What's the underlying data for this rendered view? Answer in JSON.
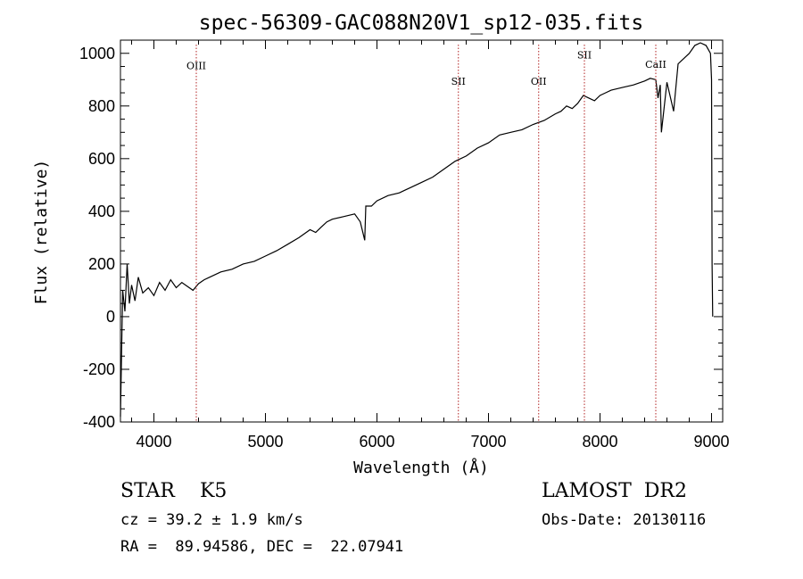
{
  "chart_data": {
    "type": "line",
    "title": "spec-56309-GAC088N20V1_sp12-035.fits",
    "xlabel": "Wavelength (Å)",
    "ylabel": "Flux (relative)",
    "xlim": [
      3700,
      9100
    ],
    "ylim": [
      -400,
      1050
    ],
    "xticks": [
      4000,
      5000,
      6000,
      7000,
      8000,
      9000
    ],
    "yticks": [
      -400,
      -200,
      0,
      200,
      400,
      600,
      800,
      1000
    ],
    "grid": false,
    "line_color": "#000000",
    "marker_color": "#b22222",
    "lines": [
      {
        "name": "OIII",
        "x": 4380,
        "label_flux": 940
      },
      {
        "name": "SII",
        "x": 6730,
        "label_flux": 880
      },
      {
        "name": "OII",
        "x": 7450,
        "label_flux": 880
      },
      {
        "name": "SII",
        "x": 7860,
        "label_flux": 980
      },
      {
        "name": "CaII",
        "x": 8500,
        "label_flux": 945
      }
    ],
    "series": [
      {
        "x": [
          3700,
          3720,
          3740,
          3760,
          3780,
          3800,
          3830,
          3860,
          3900,
          3950,
          4000,
          4050,
          4100,
          4150,
          4200,
          4250,
          4300,
          4350,
          4400,
          4450,
          4500,
          4600,
          4700,
          4800,
          4900,
          5000,
          5100,
          5200,
          5300,
          5400,
          5450,
          5500,
          5550,
          5600,
          5700,
          5800,
          5850,
          5890,
          5900,
          5950,
          6000,
          6100,
          6200,
          6250,
          6300,
          6400,
          6500,
          6600,
          6700,
          6800,
          6900,
          7000,
          7100,
          7200,
          7300,
          7400,
          7500,
          7600,
          7650,
          7700,
          7750,
          7800,
          7850,
          7900,
          7950,
          8000,
          8050,
          8100,
          8200,
          8300,
          8400,
          8450,
          8500,
          8520,
          8540,
          8550,
          8600,
          8660,
          8700,
          8750,
          8800,
          8850,
          8900,
          8950,
          8990,
          9000,
          9005,
          9010
        ],
        "y": [
          -380,
          100,
          20,
          200,
          50,
          120,
          60,
          150,
          90,
          110,
          80,
          130,
          100,
          140,
          110,
          130,
          115,
          100,
          125,
          140,
          150,
          170,
          180,
          200,
          210,
          230,
          250,
          275,
          300,
          330,
          320,
          340,
          360,
          370,
          380,
          390,
          360,
          290,
          420,
          420,
          440,
          460,
          470,
          480,
          490,
          510,
          530,
          560,
          590,
          610,
          640,
          660,
          690,
          700,
          710,
          730,
          745,
          770,
          780,
          800,
          790,
          810,
          840,
          830,
          820,
          840,
          850,
          860,
          870,
          880,
          895,
          905,
          900,
          830,
          880,
          700,
          890,
          780,
          960,
          980,
          1000,
          1030,
          1040,
          1030,
          1000,
          900,
          200,
          0
        ]
      }
    ]
  },
  "footer": {
    "object": "STAR    K5",
    "velocity": "cz = 39.2 ± 1.9 km/s",
    "coords": "RA =  89.94586, DEC =  22.07941",
    "survey": "LAMOST  DR2",
    "obs_date": "Obs-Date: 20130116"
  }
}
